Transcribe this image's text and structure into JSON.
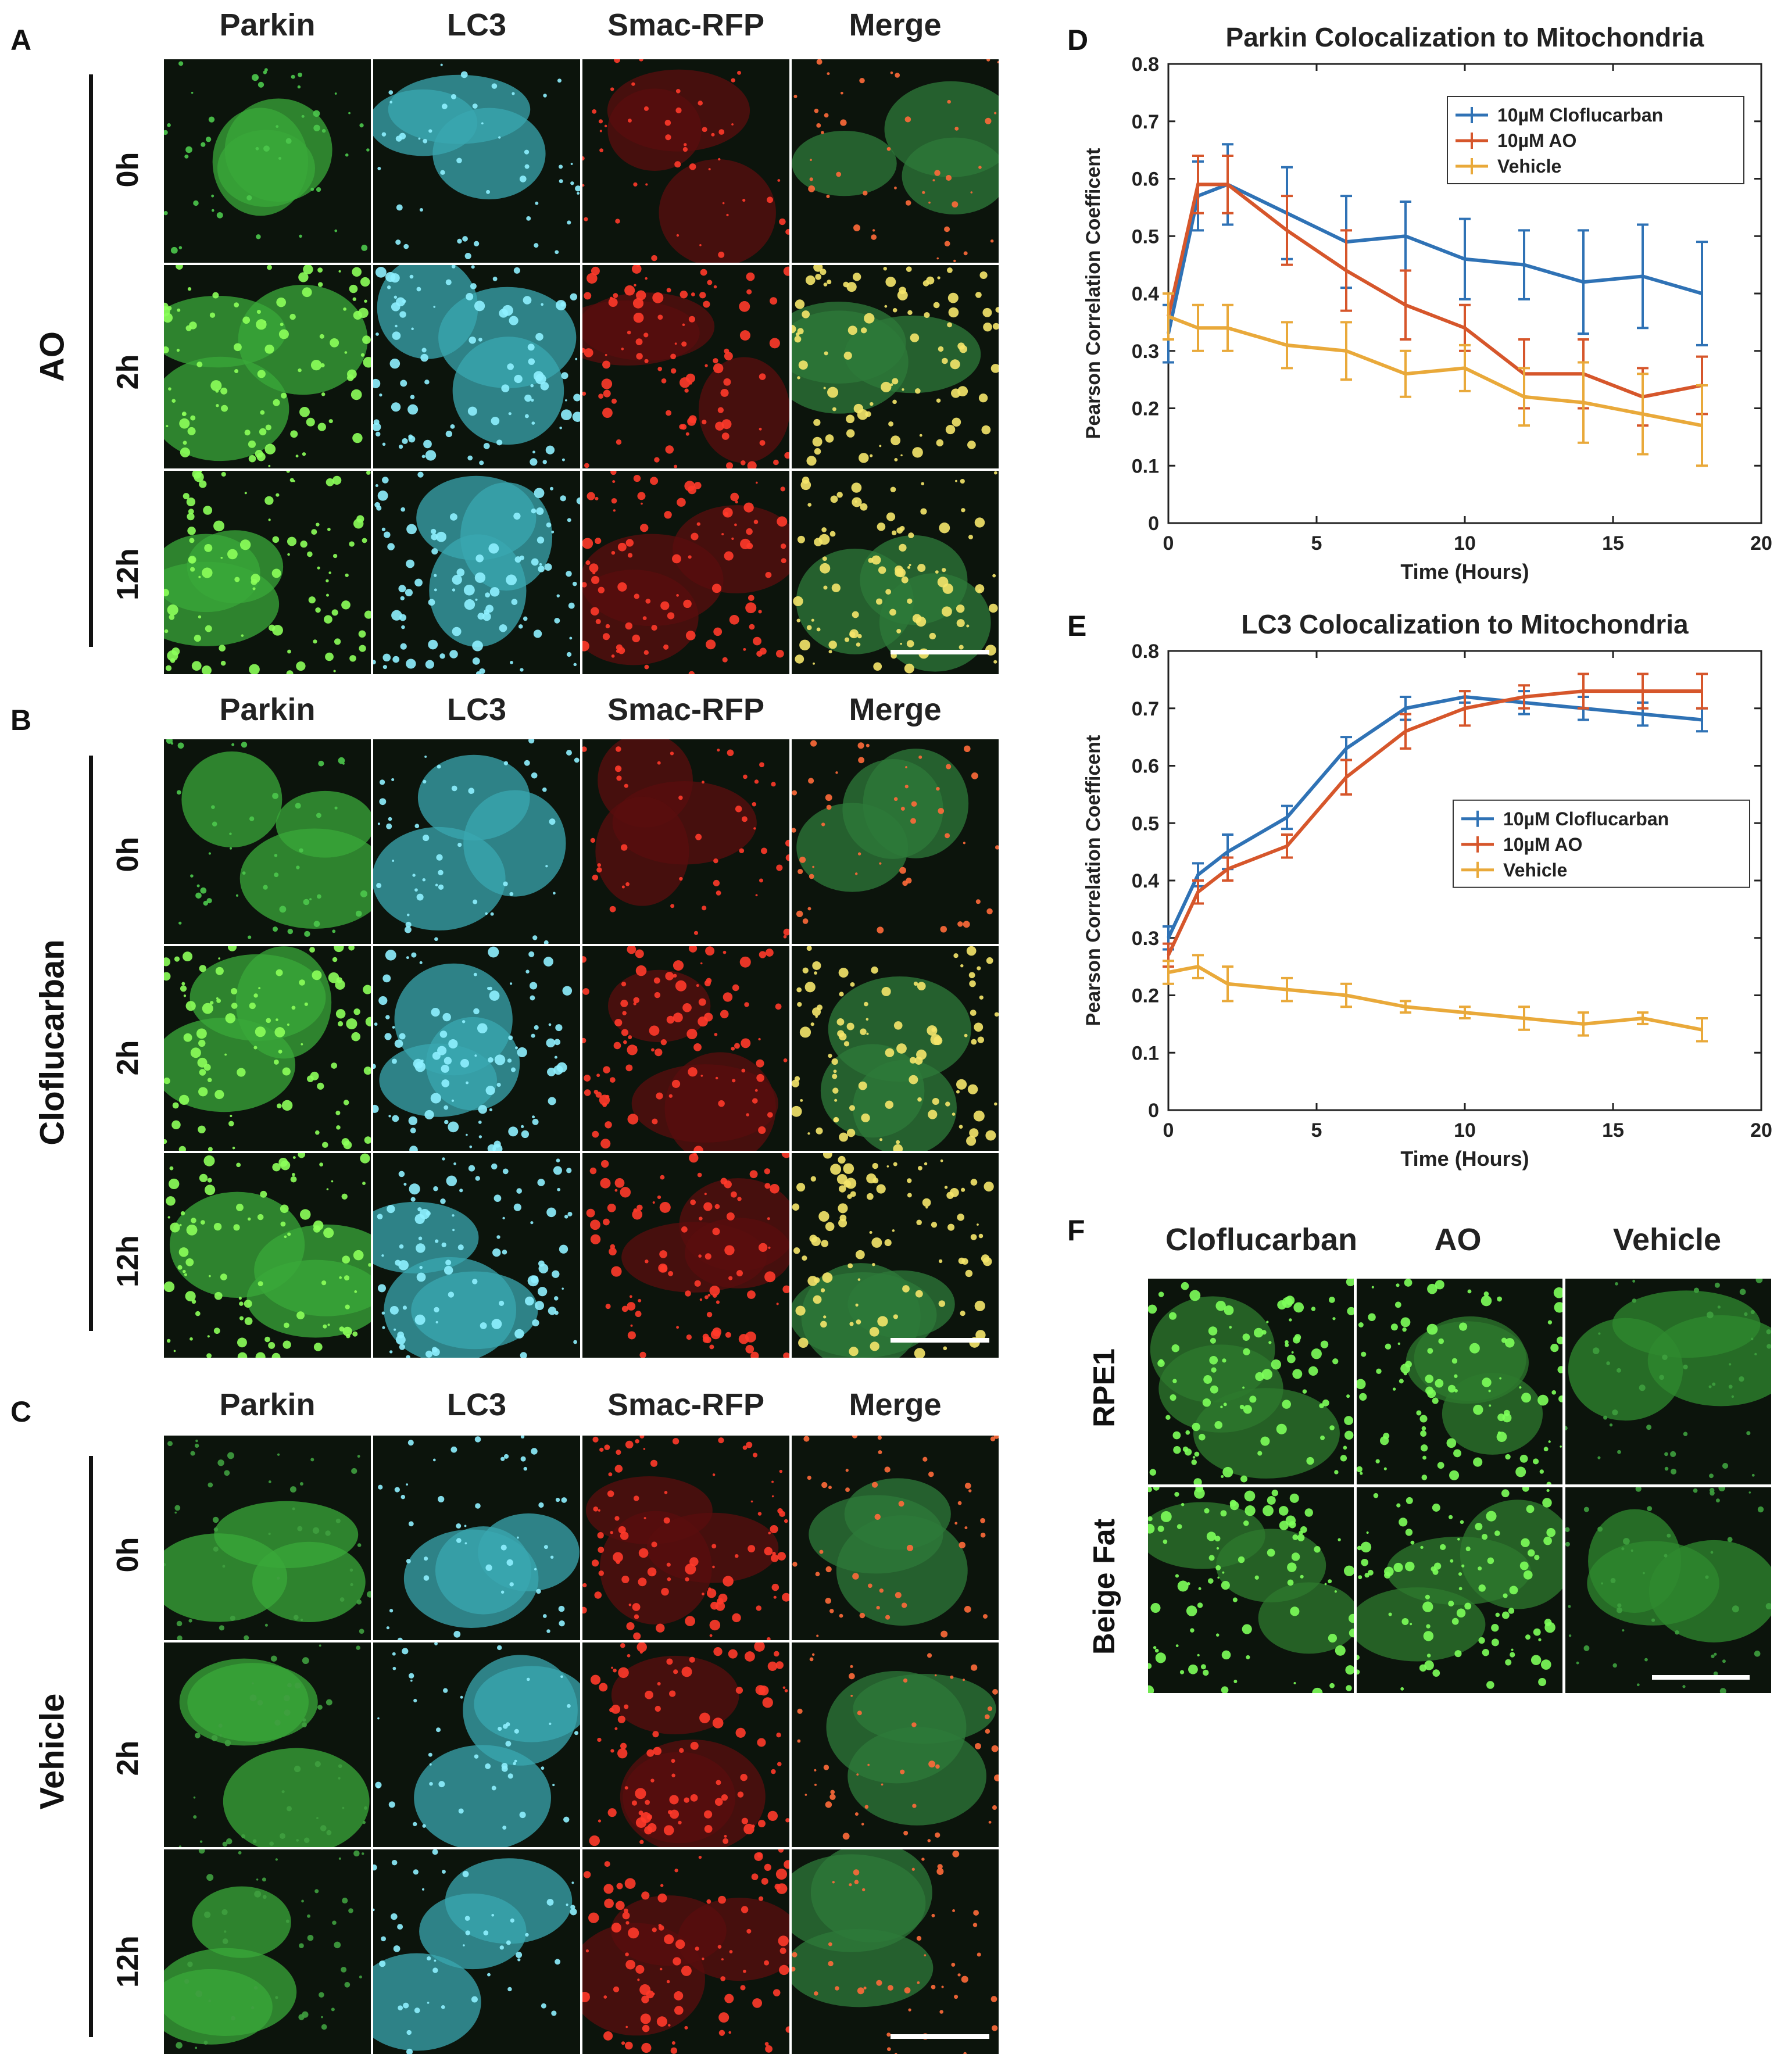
{
  "panels": {
    "A": {
      "letter": "A",
      "group": "AO",
      "columns": [
        "Parkin",
        "LC3",
        "Smac-RFP",
        "Merge"
      ],
      "rows": [
        "0h",
        "2h",
        "12h"
      ]
    },
    "B": {
      "letter": "B",
      "group": "Cloflucarban",
      "columns": [
        "Parkin",
        "LC3",
        "Smac-RFP",
        "Merge"
      ],
      "rows": [
        "0h",
        "2h",
        "12h"
      ]
    },
    "C": {
      "letter": "C",
      "group": "Vehicle",
      "columns": [
        "Parkin",
        "LC3",
        "Smac-RFP",
        "Merge"
      ],
      "rows": [
        "0h",
        "2h",
        "12h"
      ]
    },
    "F": {
      "letter": "F",
      "columns": [
        "Cloflucarban",
        "AO",
        "Vehicle"
      ],
      "rows": [
        "RPE1",
        "Beige Fat"
      ]
    }
  },
  "colors": {
    "parkin": "#3aa83a",
    "lc3": "#3aa7b0",
    "smac": "#c82020",
    "merge_bg": "#2e7a3a",
    "blue": "#2f72b5",
    "red": "#d6562b",
    "yellow": "#e9a93a"
  },
  "chart_data": [
    {
      "letter": "D",
      "type": "line",
      "title": "Parkin Colocalization to Mitochondria",
      "xlabel": "Time (Hours)",
      "ylabel": "Pearson Correlation Coefficent",
      "xlim": [
        0,
        20
      ],
      "ylim": [
        0,
        0.8
      ],
      "xticks": [
        0,
        5,
        10,
        15,
        20
      ],
      "yticks": [
        0,
        0.1,
        0.2,
        0.3,
        0.4,
        0.5,
        0.6,
        0.7,
        0.8
      ],
      "legend_position": "top-right",
      "x": [
        0,
        1,
        2,
        4,
        6,
        8,
        10,
        12,
        14,
        16,
        18
      ],
      "series": [
        {
          "name": "10µM Cloflucarban",
          "color": "#2f72b5",
          "values": [
            0.33,
            0.57,
            0.59,
            0.54,
            0.49,
            0.5,
            0.46,
            0.45,
            0.42,
            0.43,
            0.4
          ],
          "errors": [
            0.05,
            0.06,
            0.07,
            0.08,
            0.08,
            0.06,
            0.07,
            0.06,
            0.09,
            0.09,
            0.09
          ]
        },
        {
          "name": "10µM AO",
          "color": "#d6562b",
          "values": [
            0.36,
            0.59,
            0.59,
            0.51,
            0.44,
            0.38,
            0.34,
            0.26,
            0.26,
            0.22,
            0.24
          ],
          "errors": [
            0.04,
            0.05,
            0.05,
            0.06,
            0.07,
            0.06,
            0.04,
            0.06,
            0.06,
            0.05,
            0.05
          ]
        },
        {
          "name": "Vehicle",
          "color": "#e9a93a",
          "values": [
            0.36,
            0.34,
            0.34,
            0.31,
            0.3,
            0.26,
            0.27,
            0.22,
            0.21,
            0.19,
            0.17
          ],
          "errors": [
            0.04,
            0.04,
            0.04,
            0.04,
            0.05,
            0.04,
            0.04,
            0.05,
            0.07,
            0.07,
            0.07
          ]
        }
      ]
    },
    {
      "letter": "E",
      "type": "line",
      "title": "LC3 Colocalization to Mitochondria",
      "xlabel": "Time (Hours)",
      "ylabel": "Pearson Correlation Coefficent",
      "xlim": [
        0,
        20
      ],
      "ylim": [
        0,
        0.8
      ],
      "xticks": [
        0,
        5,
        10,
        15,
        20
      ],
      "yticks": [
        0,
        0.1,
        0.2,
        0.3,
        0.4,
        0.5,
        0.6,
        0.7,
        0.8
      ],
      "legend_position": "center-right",
      "x": [
        0,
        1,
        2,
        4,
        6,
        8,
        10,
        12,
        14,
        16,
        18
      ],
      "series": [
        {
          "name": "10µM Cloflucarban",
          "color": "#2f72b5",
          "values": [
            0.3,
            0.41,
            0.45,
            0.51,
            0.63,
            0.7,
            0.72,
            0.71,
            0.7,
            0.69,
            0.68
          ],
          "errors": [
            0.02,
            0.02,
            0.03,
            0.02,
            0.02,
            0.02,
            0.01,
            0.02,
            0.02,
            0.02,
            0.02
          ]
        },
        {
          "name": "10µM AO",
          "color": "#d6562b",
          "values": [
            0.27,
            0.38,
            0.42,
            0.46,
            0.58,
            0.66,
            0.7,
            0.72,
            0.73,
            0.73,
            0.73
          ],
          "errors": [
            0.02,
            0.02,
            0.02,
            0.02,
            0.03,
            0.03,
            0.03,
            0.02,
            0.03,
            0.03,
            0.03
          ]
        },
        {
          "name": "Vehicle",
          "color": "#e9a93a",
          "values": [
            0.24,
            0.25,
            0.22,
            0.21,
            0.2,
            0.18,
            0.17,
            0.16,
            0.15,
            0.16,
            0.14
          ],
          "errors": [
            0.02,
            0.02,
            0.03,
            0.02,
            0.02,
            0.01,
            0.01,
            0.02,
            0.02,
            0.01,
            0.02
          ]
        }
      ]
    }
  ]
}
